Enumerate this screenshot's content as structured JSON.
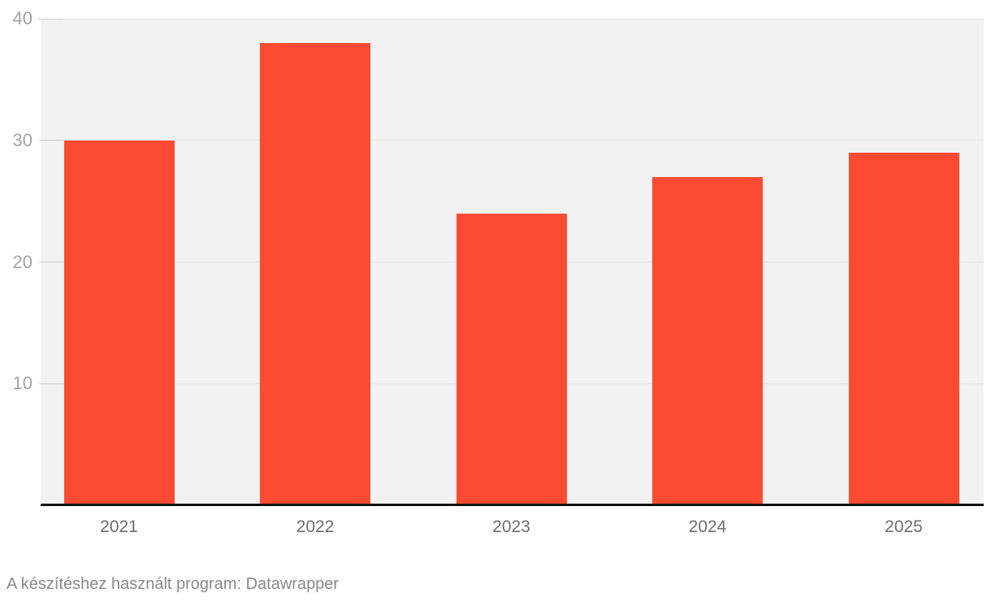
{
  "chart_data": {
    "type": "bar",
    "categories": [
      "2021",
      "2022",
      "2023",
      "2024",
      "2025"
    ],
    "values": [
      30,
      38,
      24,
      27,
      29
    ],
    "title": "",
    "xlabel": "",
    "ylabel": "",
    "ylim": [
      0,
      40
    ],
    "yticks": [
      10,
      20,
      30,
      40
    ],
    "grid": true,
    "legend": false,
    "bar_color": "#fd4a33",
    "plot_background": "#f2f2f2",
    "gridline_color": "#e7e7e7",
    "tick_color": "#cccccc",
    "axis_line_color": "#131313",
    "y_label_color": "#a4a4a4",
    "x_label_color": "#6e6e6e"
  },
  "footer": {
    "attribution": "A készítéshez használt program: Datawrapper",
    "attribution_color": "#898989"
  }
}
